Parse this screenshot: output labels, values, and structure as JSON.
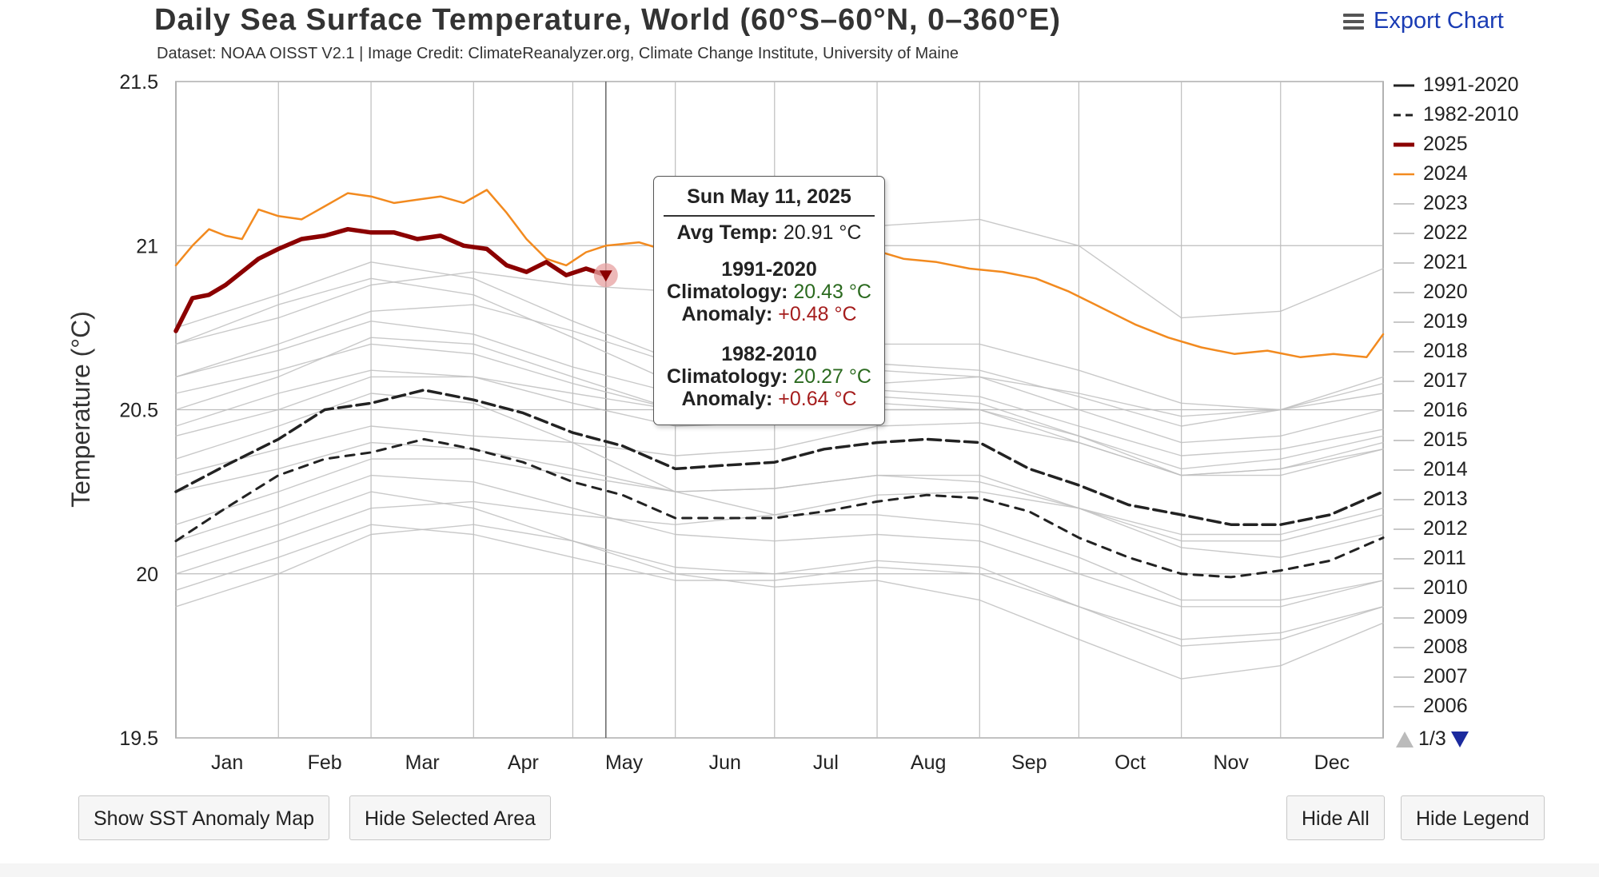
{
  "header": {
    "title": "Daily Sea Surface Temperature, World (60°S–60°N, 0–360°E)",
    "subtitle": "Dataset: NOAA OISST V2.1 | Image Credit: ClimateReanalyzer.org, Climate Change Institute, University of Maine",
    "export_label": "Export Chart"
  },
  "chart_data": {
    "type": "line",
    "title": "Daily Sea Surface Temperature, World (60°S–60°N, 0–360°E)",
    "xlabel": "",
    "ylabel": "Temperature (°C)",
    "ylim": [
      19.5,
      21.5
    ],
    "yticks": [
      19.5,
      20,
      20.5,
      21,
      21.5
    ],
    "ytick_labels": [
      "19.5",
      "20",
      "20.5",
      "21",
      "21.5"
    ],
    "xlim": [
      0,
      365
    ],
    "x_unit": "day of year",
    "categories": [
      "Jan",
      "Feb",
      "Mar",
      "Apr",
      "May",
      "Jun",
      "Jul",
      "Aug",
      "Sep",
      "Oct",
      "Nov",
      "Dec"
    ],
    "month_starts": [
      0,
      31,
      59,
      90,
      120,
      151,
      181,
      212,
      243,
      273,
      304,
      334
    ],
    "grid": true,
    "series": [
      {
        "name": "1991-2020",
        "style": "dashed-dark",
        "color": "#222222",
        "x": [
          0,
          15,
          31,
          45,
          59,
          75,
          90,
          105,
          120,
          135,
          151,
          165,
          181,
          196,
          212,
          227,
          243,
          258,
          273,
          288,
          304,
          319,
          334,
          349,
          365
        ],
        "values": [
          20.25,
          20.33,
          20.41,
          20.5,
          20.52,
          20.56,
          20.53,
          20.49,
          20.43,
          20.39,
          20.32,
          20.33,
          20.34,
          20.38,
          20.4,
          20.41,
          20.4,
          20.32,
          20.27,
          20.21,
          20.18,
          20.15,
          20.15,
          20.18,
          20.25
        ]
      },
      {
        "name": "1982-2010",
        "style": "dashed",
        "color": "#222222",
        "x": [
          0,
          15,
          31,
          45,
          59,
          75,
          90,
          105,
          120,
          135,
          151,
          165,
          181,
          196,
          212,
          227,
          243,
          258,
          273,
          288,
          304,
          319,
          334,
          349,
          365
        ],
        "values": [
          20.1,
          20.2,
          20.3,
          20.35,
          20.37,
          20.41,
          20.38,
          20.34,
          20.28,
          20.24,
          20.17,
          20.17,
          20.17,
          20.19,
          20.22,
          20.24,
          20.23,
          20.19,
          20.11,
          20.05,
          20.0,
          19.99,
          20.01,
          20.04,
          20.11
        ]
      },
      {
        "name": "2025",
        "style": "thick",
        "color": "#8b0000",
        "x": [
          0,
          5,
          10,
          15,
          20,
          25,
          31,
          38,
          45,
          52,
          59,
          66,
          73,
          80,
          87,
          94,
          100,
          106,
          112,
          118,
          124,
          130
        ],
        "values": [
          20.74,
          20.84,
          20.85,
          20.88,
          20.92,
          20.96,
          20.99,
          21.02,
          21.03,
          21.05,
          21.04,
          21.04,
          21.02,
          21.03,
          21.0,
          20.99,
          20.94,
          20.92,
          20.95,
          20.91,
          20.93,
          20.91
        ]
      },
      {
        "name": "2024",
        "style": "solid",
        "color": "#f28a1f",
        "x": [
          0,
          5,
          10,
          15,
          20,
          25,
          31,
          38,
          45,
          52,
          59,
          66,
          73,
          80,
          87,
          94,
          100,
          106,
          112,
          118,
          124,
          130,
          140,
          150,
          160,
          170,
          180,
          190,
          200,
          210,
          220,
          230,
          240,
          250,
          260,
          270,
          280,
          290,
          300,
          310,
          320,
          330,
          340,
          350,
          360,
          365
        ],
        "values": [
          20.94,
          21.0,
          21.05,
          21.03,
          21.02,
          21.11,
          21.09,
          21.08,
          21.12,
          21.16,
          21.15,
          21.13,
          21.14,
          21.15,
          21.13,
          21.17,
          21.1,
          21.02,
          20.96,
          20.94,
          20.98,
          21.0,
          21.01,
          20.98,
          20.97,
          20.98,
          20.99,
          21.0,
          20.97,
          20.99,
          20.96,
          20.95,
          20.93,
          20.92,
          20.9,
          20.86,
          20.81,
          20.76,
          20.72,
          20.69,
          20.67,
          20.68,
          20.66,
          20.67,
          20.66,
          20.73
        ]
      },
      {
        "name": "2023",
        "style": "thin-gray",
        "color": "#c0c0c0",
        "x": [
          0,
          31,
          59,
          90,
          120,
          151,
          181,
          212,
          243,
          273,
          304,
          334,
          365
        ],
        "values": [
          20.7,
          20.78,
          20.88,
          20.92,
          20.88,
          20.86,
          20.96,
          21.06,
          21.08,
          21.0,
          20.78,
          20.8,
          20.93
        ]
      },
      {
        "name": "2022",
        "style": "thin-gray",
        "color": "#c0c0c0",
        "x": [
          0,
          31,
          59,
          90,
          120,
          151,
          181,
          212,
          243,
          273,
          304,
          334,
          365
        ],
        "values": [
          20.6,
          20.68,
          20.77,
          20.73,
          20.63,
          20.55,
          20.58,
          20.62,
          20.6,
          20.5,
          20.4,
          20.42,
          20.5
        ]
      },
      {
        "name": "2021",
        "style": "thin-gray",
        "color": "#c0c0c0",
        "x": [
          0,
          31,
          59,
          90,
          120,
          151,
          181,
          212,
          243,
          273,
          304,
          334,
          365
        ],
        "values": [
          20.55,
          20.62,
          20.7,
          20.67,
          20.58,
          20.5,
          20.52,
          20.56,
          20.54,
          20.45,
          20.36,
          20.38,
          20.44
        ]
      },
      {
        "name": "2020",
        "style": "thin-gray",
        "color": "#c0c0c0",
        "x": [
          0,
          31,
          59,
          90,
          120,
          151,
          181,
          212,
          243,
          273,
          304,
          334,
          365
        ],
        "values": [
          20.75,
          20.85,
          20.95,
          20.9,
          20.77,
          20.65,
          20.6,
          20.64,
          20.62,
          20.54,
          20.45,
          20.5,
          20.55
        ]
      },
      {
        "name": "2019",
        "style": "thin-gray",
        "color": "#c0c0c0",
        "x": [
          0,
          31,
          59,
          90,
          120,
          151,
          181,
          212,
          243,
          273,
          304,
          334,
          365
        ],
        "values": [
          20.6,
          20.7,
          20.8,
          20.82,
          20.74,
          20.64,
          20.64,
          20.7,
          20.7,
          20.62,
          20.52,
          20.5,
          20.6
        ]
      },
      {
        "name": "2018",
        "style": "thin-gray",
        "color": "#c0c0c0",
        "x": [
          0,
          31,
          59,
          90,
          120,
          151,
          181,
          212,
          243,
          273,
          304,
          334,
          365
        ],
        "values": [
          20.45,
          20.55,
          20.62,
          20.6,
          20.52,
          20.45,
          20.46,
          20.5,
          20.5,
          20.42,
          20.32,
          20.35,
          20.42
        ]
      },
      {
        "name": "2017",
        "style": "thin-gray",
        "color": "#c0c0c0",
        "x": [
          0,
          31,
          59,
          90,
          120,
          151,
          181,
          212,
          243,
          273,
          304,
          334,
          365
        ],
        "values": [
          20.5,
          20.6,
          20.72,
          20.7,
          20.6,
          20.5,
          20.48,
          20.52,
          20.5,
          20.4,
          20.3,
          20.32,
          20.4
        ]
      },
      {
        "name": "2016",
        "style": "thin-gray",
        "color": "#c0c0c0",
        "x": [
          0,
          31,
          59,
          90,
          120,
          151,
          181,
          212,
          243,
          273,
          304,
          334,
          365
        ],
        "values": [
          20.7,
          20.82,
          20.9,
          20.85,
          20.72,
          20.58,
          20.52,
          20.54,
          20.52,
          20.42,
          20.3,
          20.32,
          20.38
        ]
      },
      {
        "name": "2015",
        "style": "thin-gray",
        "color": "#c0c0c0",
        "x": [
          0,
          31,
          59,
          90,
          120,
          151,
          181,
          212,
          243,
          273,
          304,
          334,
          365
        ],
        "values": [
          20.42,
          20.5,
          20.6,
          20.6,
          20.55,
          20.5,
          20.52,
          20.58,
          20.6,
          20.55,
          20.48,
          20.5,
          20.58
        ]
      },
      {
        "name": "2014",
        "style": "thin-gray",
        "color": "#c0c0c0",
        "x": [
          0,
          31,
          59,
          90,
          120,
          151,
          181,
          212,
          243,
          273,
          304,
          334,
          365
        ],
        "values": [
          20.3,
          20.38,
          20.45,
          20.42,
          20.4,
          20.36,
          20.38,
          20.45,
          20.46,
          20.4,
          20.3,
          20.3,
          20.38
        ]
      },
      {
        "name": "2013",
        "style": "thin-gray",
        "color": "#c0c0c0",
        "x": [
          0,
          31,
          59,
          90,
          120,
          151,
          181,
          212,
          243,
          273,
          304,
          334,
          365
        ],
        "values": [
          20.25,
          20.32,
          20.4,
          20.38,
          20.32,
          20.25,
          20.26,
          20.3,
          20.28,
          20.2,
          20.12,
          20.12,
          20.2
        ]
      },
      {
        "name": "2012",
        "style": "thin-gray",
        "color": "#c0c0c0",
        "x": [
          0,
          31,
          59,
          90,
          120,
          151,
          181,
          212,
          243,
          273,
          304,
          334,
          365
        ],
        "values": [
          20.15,
          20.25,
          20.35,
          20.35,
          20.3,
          20.25,
          20.26,
          20.3,
          20.3,
          20.2,
          20.08,
          20.05,
          20.12
        ]
      },
      {
        "name": "2011",
        "style": "thin-gray",
        "color": "#c0c0c0",
        "x": [
          0,
          31,
          59,
          90,
          120,
          151,
          181,
          212,
          243,
          273,
          304,
          334,
          365
        ],
        "values": [
          20.1,
          20.2,
          20.3,
          20.28,
          20.2,
          20.12,
          20.1,
          20.12,
          20.1,
          20.0,
          19.9,
          19.9,
          19.98
        ]
      },
      {
        "name": "2010",
        "style": "thin-gray",
        "color": "#c0c0c0",
        "x": [
          0,
          31,
          59,
          90,
          120,
          151,
          181,
          212,
          243,
          273,
          304,
          334,
          365
        ],
        "values": [
          20.35,
          20.45,
          20.55,
          20.52,
          20.4,
          20.25,
          20.18,
          20.18,
          20.15,
          20.05,
          19.92,
          19.92,
          19.98
        ]
      },
      {
        "name": "2009",
        "style": "thin-gray",
        "color": "#c0c0c0",
        "x": [
          0,
          31,
          59,
          90,
          120,
          151,
          181,
          212,
          243,
          273,
          304,
          334,
          365
        ],
        "values": [
          20.0,
          20.1,
          20.2,
          20.22,
          20.18,
          20.15,
          20.18,
          20.24,
          20.25,
          20.2,
          20.1,
          20.1,
          20.18
        ]
      },
      {
        "name": "2008",
        "style": "thin-gray",
        "color": "#c0c0c0",
        "x": [
          0,
          31,
          59,
          90,
          120,
          151,
          181,
          212,
          243,
          273,
          304,
          334,
          365
        ],
        "values": [
          19.9,
          20.0,
          20.12,
          20.15,
          20.1,
          20.02,
          20.0,
          20.04,
          20.02,
          19.9,
          19.8,
          19.82,
          19.9
        ]
      },
      {
        "name": "2007",
        "style": "thin-gray",
        "color": "#c0c0c0",
        "x": [
          0,
          31,
          59,
          90,
          120,
          151,
          181,
          212,
          243,
          273,
          304,
          334,
          365
        ],
        "values": [
          20.05,
          20.15,
          20.25,
          20.2,
          20.1,
          20.0,
          19.96,
          19.98,
          19.92,
          19.8,
          19.68,
          19.72,
          19.85
        ]
      },
      {
        "name": "2006",
        "style": "thin-gray",
        "color": "#c0c0c0",
        "x": [
          0,
          31,
          59,
          90,
          120,
          151,
          181,
          212,
          243,
          273,
          304,
          334,
          365
        ],
        "values": [
          19.95,
          20.05,
          20.15,
          20.12,
          20.05,
          19.98,
          19.98,
          20.02,
          20.0,
          19.9,
          19.78,
          19.8,
          19.9
        ]
      }
    ],
    "highlight": {
      "series": "2025",
      "x": 130,
      "value": 20.91
    }
  },
  "legend": {
    "items": [
      {
        "label": "1991-2020",
        "style": "solid-dark",
        "color": "#222222"
      },
      {
        "label": "1982-2010",
        "style": "dashed",
        "color": "#222222"
      },
      {
        "label": "2025",
        "style": "thick",
        "color": "#8b0000"
      },
      {
        "label": "2024",
        "style": "solid",
        "color": "#f28a1f"
      },
      {
        "label": "2023",
        "style": "thin",
        "color": "#c8c8c8"
      },
      {
        "label": "2022",
        "style": "thin",
        "color": "#c8c8c8"
      },
      {
        "label": "2021",
        "style": "thin",
        "color": "#c8c8c8"
      },
      {
        "label": "2020",
        "style": "thin",
        "color": "#c8c8c8"
      },
      {
        "label": "2019",
        "style": "thin",
        "color": "#c8c8c8"
      },
      {
        "label": "2018",
        "style": "thin",
        "color": "#c8c8c8"
      },
      {
        "label": "2017",
        "style": "thin",
        "color": "#c8c8c8"
      },
      {
        "label": "2016",
        "style": "thin",
        "color": "#c8c8c8"
      },
      {
        "label": "2015",
        "style": "thin",
        "color": "#c8c8c8"
      },
      {
        "label": "2014",
        "style": "thin",
        "color": "#c8c8c8"
      },
      {
        "label": "2013",
        "style": "thin",
        "color": "#c8c8c8"
      },
      {
        "label": "2012",
        "style": "thin",
        "color": "#c8c8c8"
      },
      {
        "label": "2011",
        "style": "thin",
        "color": "#c8c8c8"
      },
      {
        "label": "2010",
        "style": "thin",
        "color": "#c8c8c8"
      },
      {
        "label": "2009",
        "style": "thin",
        "color": "#c8c8c8"
      },
      {
        "label": "2008",
        "style": "thin",
        "color": "#c8c8c8"
      },
      {
        "label": "2007",
        "style": "thin",
        "color": "#c8c8c8"
      },
      {
        "label": "2006",
        "style": "thin",
        "color": "#c8c8c8"
      }
    ],
    "page_indicator": "1/3"
  },
  "tooltip": {
    "date": "Sun May 11, 2025",
    "avg_temp_label": "Avg Temp:",
    "avg_temp_value": "20.91 °C",
    "groups": [
      {
        "period": "1991-2020",
        "clim_label": "Climatology:",
        "clim_value": "20.43 °C",
        "anom_label": "Anomaly:",
        "anom_value": "+0.48 °C"
      },
      {
        "period": "1982-2010",
        "clim_label": "Climatology:",
        "clim_value": "20.27 °C",
        "anom_label": "Anomaly:",
        "anom_value": "+0.64 °C"
      }
    ]
  },
  "buttons": {
    "show_anomaly_map": "Show SST Anomaly Map",
    "hide_selected_area": "Hide Selected Area",
    "hide_all": "Hide All",
    "hide_legend": "Hide Legend"
  }
}
